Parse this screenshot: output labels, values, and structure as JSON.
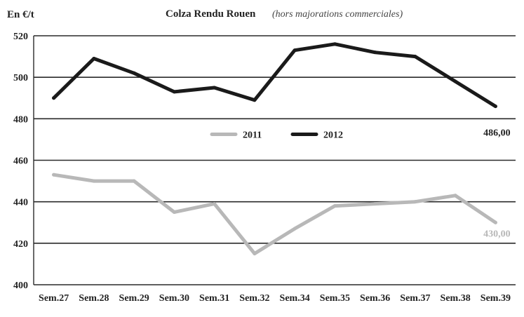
{
  "chart_data": {
    "type": "line",
    "title": "Colza Rendu Rouen",
    "subtitle": "(hors majorations commerciales)",
    "ylabel": "En €/t",
    "xlabel": "",
    "ylim": [
      400,
      520
    ],
    "yticks": [
      400,
      420,
      440,
      460,
      480,
      500,
      520
    ],
    "grid": "horizontal",
    "legend_position": "center",
    "categories": [
      "Sem.27",
      "Sem.28",
      "Sem.29",
      "Sem.30",
      "Sem.31",
      "Sem.32",
      "Sem.34",
      "Sem.35",
      "Sem.36",
      "Sem.37",
      "Sem.38",
      "Sem.39"
    ],
    "series": [
      {
        "name": "2011",
        "color": "#b8b8b8",
        "values": [
          453,
          450,
          450,
          435,
          439,
          415,
          427,
          438,
          439,
          440,
          443,
          430
        ],
        "end_label": "430,00"
      },
      {
        "name": "2012",
        "color": "#1a1a1a",
        "values": [
          490,
          509,
          502,
          493,
          495,
          489,
          513,
          516,
          512,
          510,
          498,
          486
        ],
        "end_label": "486,00"
      }
    ]
  }
}
